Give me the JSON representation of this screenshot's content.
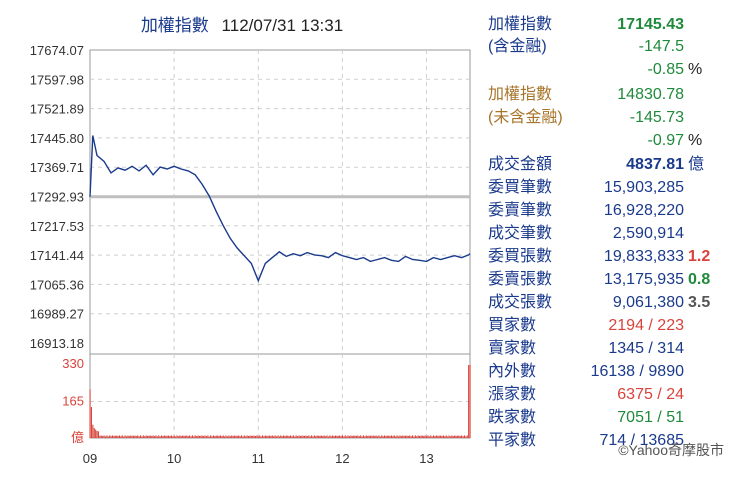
{
  "header": {
    "title_cn": "加權指數",
    "datetime": "112/07/31 13:31"
  },
  "chart_data": {
    "type": "line",
    "title": "加權指數 112/07/31 13:31",
    "x_ticks": [
      "09",
      "10",
      "11",
      "12",
      "13"
    ],
    "y_ticks": [
      "17674.07",
      "17597.98",
      "17521.89",
      "17445.80",
      "17369.71",
      "17292.93",
      "17217.53",
      "17141.44",
      "17065.36",
      "16989.27",
      "16913.18"
    ],
    "ylim": [
      16913.18,
      17674.07
    ],
    "reference_value": 17292.93,
    "price_series": {
      "time_min": [
        0,
        2,
        5,
        10,
        15,
        20,
        25,
        30,
        35,
        40,
        45,
        50,
        55,
        60,
        65,
        70,
        75,
        80,
        85,
        90,
        95,
        100,
        105,
        110,
        115,
        120,
        125,
        130,
        135,
        140,
        145,
        150,
        155,
        160,
        165,
        170,
        175,
        180,
        185,
        190,
        195,
        200,
        205,
        210,
        215,
        220,
        225,
        230,
        235,
        240,
        245,
        250,
        255,
        260,
        265,
        270,
        271
      ],
      "values": [
        17292.9,
        17452.0,
        17400.0,
        17385.0,
        17355.0,
        17368.0,
        17362.0,
        17372.0,
        17360.0,
        17375.0,
        17350.0,
        17370.0,
        17365.0,
        17372.0,
        17365.0,
        17360.0,
        17350.0,
        17325.0,
        17295.0,
        17255.0,
        17218.0,
        17185.0,
        17160.0,
        17140.0,
        17120.0,
        17075.0,
        17120.0,
        17135.0,
        17150.0,
        17138.0,
        17145.0,
        17140.0,
        17148.0,
        17142.0,
        17140.0,
        17135.0,
        17148.0,
        17140.0,
        17135.0,
        17130.0,
        17135.0,
        17125.0,
        17130.0,
        17135.0,
        17128.0,
        17125.0,
        17138.0,
        17130.0,
        17128.0,
        17125.0,
        17135.0,
        17130.0,
        17135.0,
        17140.0,
        17135.0,
        17142.0,
        17145.4
      ]
    },
    "volume_axis": {
      "ticks": [
        "330",
        "165",
        "億"
      ],
      "max": 330
    },
    "volume_series": {
      "opening": [
        220,
        140,
        60,
        45,
        38,
        32,
        30
      ],
      "typical": 12,
      "closing": 330
    },
    "colors": {
      "line": "#1a3a8c",
      "volume": "#d9433b",
      "reference": "#bfbfbf",
      "grid": "#cfcfcf"
    }
  },
  "info_panel": [
    {
      "label": "加權指數",
      "value": "17145.43",
      "suffix": ""
    },
    {
      "label": "(含金融)",
      "value": "-147.5",
      "suffix": ""
    },
    {
      "label": "",
      "value": "-0.85",
      "suffix": "%"
    },
    {
      "label": "加權指數",
      "value": "14830.78",
      "suffix": ""
    },
    {
      "label": "(未含金融)",
      "value": "-145.73",
      "suffix": ""
    },
    {
      "label": "",
      "value": "-0.97",
      "suffix": "%"
    },
    {
      "label": "成交金額",
      "value": "4837.81",
      "suffix": "億"
    },
    {
      "label": "委買筆數",
      "value": "15,903,285",
      "suffix": ""
    },
    {
      "label": "委賣筆數",
      "value": "16,928,220",
      "suffix": ""
    },
    {
      "label": "成交筆數",
      "value": "2,590,914",
      "suffix": ""
    },
    {
      "label": "委買張數",
      "value": "19,833,833",
      "suffix": "1.2"
    },
    {
      "label": "委賣張數",
      "value": "13,175,935",
      "suffix": "0.8"
    },
    {
      "label": "成交張數",
      "value": "9,061,380",
      "suffix": "3.5"
    },
    {
      "label": "買家數",
      "value": "2194 / 223",
      "suffix": ""
    },
    {
      "label": "賣家數",
      "value": "1345 / 314",
      "suffix": ""
    },
    {
      "label": "內外數",
      "value": "16138 / 9890",
      "suffix": ""
    },
    {
      "label": "漲家數",
      "value": "6375 / 24",
      "suffix": ""
    },
    {
      "label": "跌家數",
      "value": "7051 / 51",
      "suffix": ""
    },
    {
      "label": "平家數",
      "value": "714 / 13685",
      "suffix": ""
    }
  ],
  "info_colors": {
    "label_default": "#1a3a8c",
    "label_excl": "#a8742a",
    "value_default": "#1a3a8c",
    "value_green": "#1f8a3b",
    "value_red": "#d9433b",
    "value_blue": "#1a3a8c",
    "suffix_dark": "#222222",
    "suffix_red": "#d9433b",
    "suffix_green": "#1f8a3b",
    "suffix_gray": "#555555"
  },
  "footer": {
    "credit": "©Yahoo奇摩股市"
  }
}
